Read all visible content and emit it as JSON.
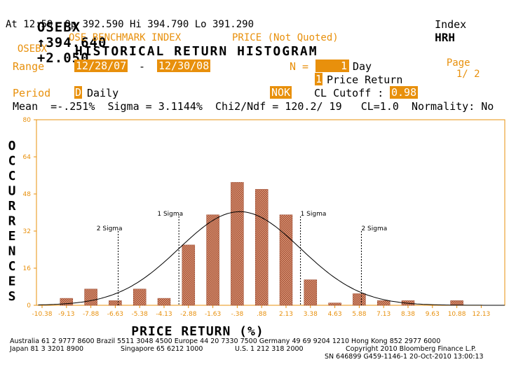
{
  "header": {
    "ticker": "OSEBX",
    "price": "↑394.640",
    "change": "+2.050",
    "index_label": "Index",
    "function_code": "HRH"
  },
  "quote_line": "At 12:59  Op 392.590 Hi 394.790 Lo 391.290",
  "info_line": {
    "ticker": "OSEBX",
    "name": "OSE BENCHMARK INDEX",
    "price_note": "PRICE (Not Quoted)"
  },
  "title": "HISTORICAL RETURN HISTOGRAM",
  "page": {
    "label": "Page",
    "value": "1/ 2"
  },
  "range": {
    "label": "Range",
    "start": "12/28/07",
    "separator": "-",
    "end": "12/30/08"
  },
  "n_field": {
    "label": "N =",
    "value": "1",
    "unit": "Day"
  },
  "return_type": {
    "code": "1",
    "label": "Price Return"
  },
  "period": {
    "label": "Period",
    "code": "D",
    "value": "Daily"
  },
  "currency": "NOK",
  "cl_cutoff": {
    "label": "CL Cutoff :",
    "value": "0.98"
  },
  "stats_line": "Mean  =-.251%  Sigma = 3.1144%  Chi2/Ndf = 120.2/ 19   CL=1.0  Normality: No",
  "chart_data": {
    "type": "bar",
    "title": "",
    "xlabel": "PRICE RETURN (%)",
    "ylabel": "OCCURRENCES",
    "ylim": [
      0,
      80
    ],
    "yticks": [
      0,
      16,
      32,
      48,
      64,
      80
    ],
    "ytick_labels": [
      "0",
      "16",
      "32",
      "48",
      "64",
      "80"
    ],
    "xtick_labels": [
      "-10.38",
      "-9.13",
      "-7.88",
      "-6.63",
      "-5.38",
      "-4.13",
      "-2.88",
      "-1.63",
      "-.38",
      ".88",
      "2.13",
      "3.38",
      "4.63",
      "5.88",
      "7.13",
      "8.38",
      "9.63",
      "10.88",
      "12.13"
    ],
    "categories": [
      "-10.38",
      "-9.13",
      "-7.88",
      "-6.63",
      "-5.38",
      "-4.13",
      "-2.88",
      "-1.63",
      "-.38",
      ".88",
      "2.13",
      "3.38",
      "4.63",
      "5.88",
      "7.13",
      "8.38",
      "9.63",
      "10.88",
      "12.13"
    ],
    "values": [
      0,
      3,
      7,
      2,
      7,
      3,
      26,
      39,
      53,
      50,
      39,
      11,
      1,
      5,
      2,
      2,
      0,
      2,
      0
    ],
    "normal_curve": {
      "mean": -0.251,
      "sigma": 3.1144
    },
    "sigma_lines": [
      {
        "x": -6.48,
        "label": "2 Sigma"
      },
      {
        "x": -3.37,
        "label": "1 Sigma"
      },
      {
        "x": 2.86,
        "label": "1 Sigma"
      },
      {
        "x": 5.98,
        "label": "2 Sigma"
      }
    ],
    "bar_color": "#c87050",
    "axis_color": "#e8900c",
    "grid": false
  },
  "footer": {
    "line1": "Australia 61 2 9777 8600 Brazil 5511 3048 4500 Europe 44 20 7330 7500 Germany 49 69 9204 1210 Hong Kong 852 2977 6000",
    "line2_left": "Japan 81 3 3201 8900",
    "line2_mid": "Singapore 65 6212 1000",
    "line2_mid2": "U.S. 1 212 318 2000",
    "line2_right": "Copyright 2010 Bloomberg Finance L.P.",
    "line3": "SN 646899 G459-1146-1 20-Oct-2010 13:00:13"
  }
}
